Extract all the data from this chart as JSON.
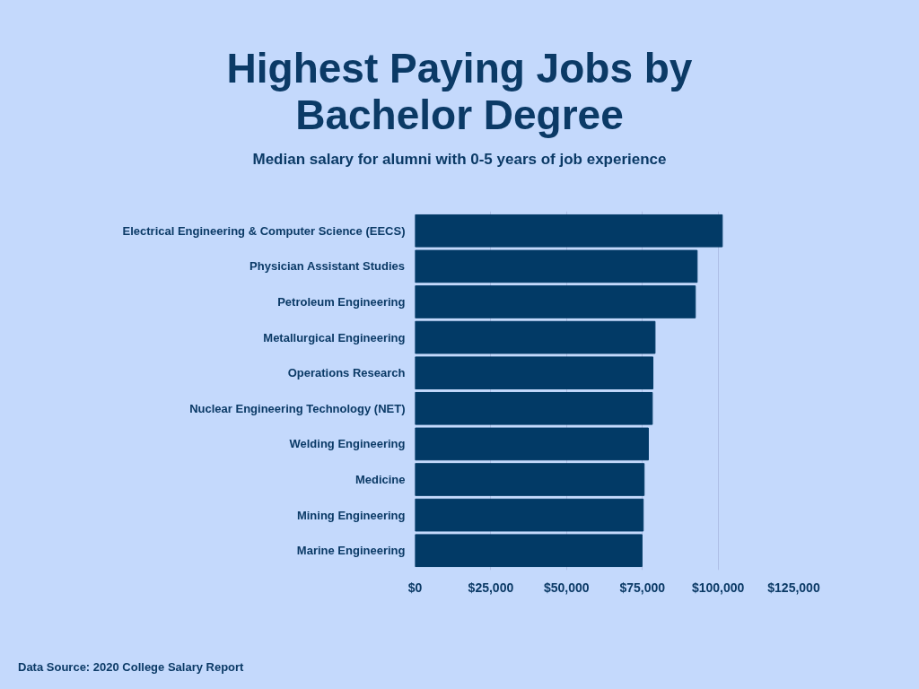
{
  "chart_data": {
    "type": "bar",
    "orientation": "horizontal",
    "title": "Highest Paying Jobs by Bachelor Degree",
    "subtitle": "Median salary for alumni with 0-5 years of job experience",
    "categories": [
      "Electrical Engineering & Computer Science (EECS)",
      "Physician Assistant Studies",
      "Petroleum Engineering",
      "Metallurgical Engineering",
      "Operations Research",
      "Nuclear Engineering Technology (NET)",
      "Welding Engineering",
      "Medicine",
      "Mining Engineering",
      "Marine Engineering"
    ],
    "values": [
      101400,
      93100,
      92500,
      79200,
      78500,
      78300,
      77000,
      75600,
      75300,
      74900
    ],
    "color": "#023a66",
    "xlim": [
      0,
      125000
    ],
    "xticks": [
      {
        "value": 0,
        "label": "$0"
      },
      {
        "value": 25000,
        "label": "$25,000"
      },
      {
        "value": 50000,
        "label": "$50,000"
      },
      {
        "value": 75000,
        "label": "$75,000"
      },
      {
        "value": 100000,
        "label": "$100,000"
      },
      {
        "value": 125000,
        "label": "$125,000"
      }
    ],
    "grid": "x",
    "annotations": [
      "Data Source: 2020 College Salary Report"
    ]
  }
}
